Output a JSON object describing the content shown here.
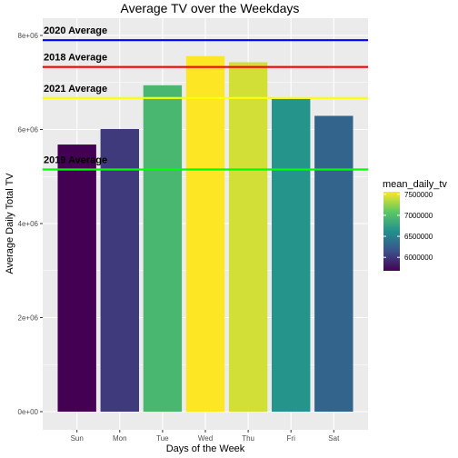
{
  "chart_data": {
    "type": "bar",
    "title": "Average TV over the Weekdays",
    "xlabel": "Days of the Week",
    "ylabel": "Average Daily Total TV",
    "categories": [
      "Sun",
      "Mon",
      "Tue",
      "Wed",
      "Thu",
      "Fri",
      "Sat"
    ],
    "values": [
      5680000,
      6010000,
      6940000,
      7560000,
      7430000,
      6650000,
      6290000
    ],
    "ylim": [
      0,
      8000000
    ],
    "yticks": [
      0,
      2000000,
      4000000,
      6000000,
      8000000
    ],
    "ytick_labels": [
      "0e+00",
      "2e+06",
      "4e+06",
      "6e+06",
      "8e+06"
    ],
    "grid": true,
    "reference_lines": [
      {
        "label": "2020 Average",
        "value": 7900000,
        "color": "#0000ff"
      },
      {
        "label": "2018 Average",
        "value": 7330000,
        "color": "#ff0000"
      },
      {
        "label": "2021 Average",
        "value": 6670000,
        "color": "#ffff00"
      },
      {
        "label": "2019 Average",
        "value": 5150000,
        "color": "#00ff00"
      }
    ],
    "colorbar": {
      "title": "mean_daily_tv",
      "range": [
        5680000,
        7560000
      ],
      "ticks": [
        6000000,
        6500000,
        7000000,
        7500000
      ],
      "tick_labels": [
        "6000000",
        "6500000",
        "7000000",
        "7500000"
      ],
      "placement": "right"
    }
  }
}
